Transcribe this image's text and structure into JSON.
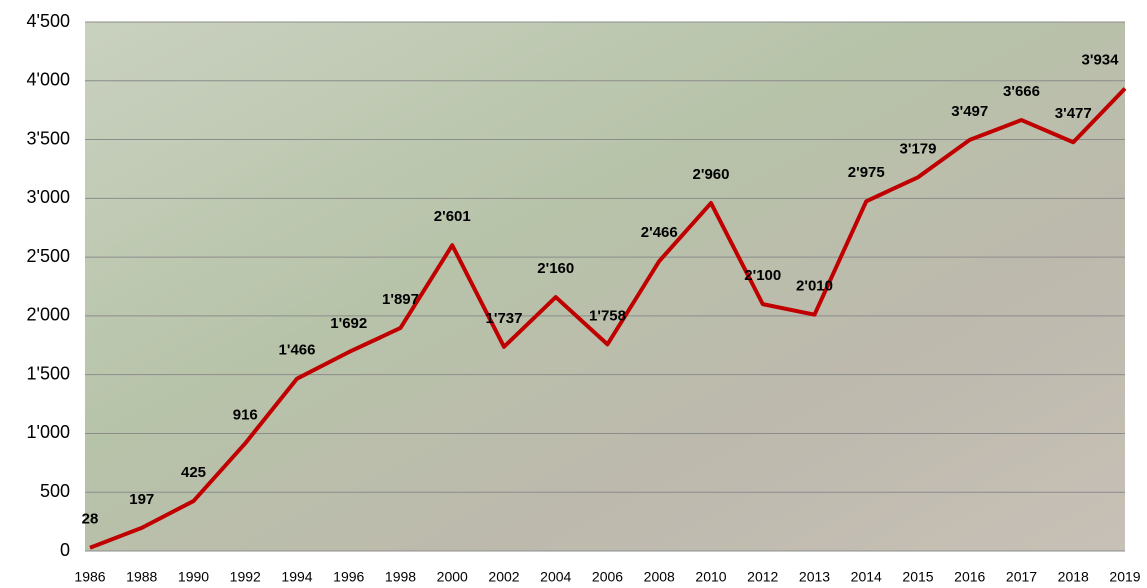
{
  "chart_data": {
    "type": "line",
    "categories": [
      "1986",
      "1988",
      "1990",
      "1992",
      "1994",
      "1996",
      "1998",
      "2000",
      "2002",
      "2004",
      "2006",
      "2008",
      "2010",
      "2012",
      "2013",
      "2014",
      "2015",
      "2016",
      "2017",
      "2018",
      "2019"
    ],
    "values": [
      28,
      197,
      425,
      916,
      1466,
      1692,
      1897,
      2601,
      1737,
      2160,
      1758,
      2466,
      2960,
      2100,
      2010,
      2975,
      3179,
      3497,
      3666,
      3477,
      3934
    ],
    "value_labels": [
      "28",
      "197",
      "425",
      "916",
      "1'466",
      "1'692",
      "1'897",
      "2'601",
      "1'737",
      "2'160",
      "1'758",
      "2'466",
      "2'960",
      "2'100",
      "2'010",
      "2'975",
      "3'179",
      "3'497",
      "3'666",
      "3'477",
      "3'934"
    ],
    "color": "#c00000",
    "ylim": [
      0,
      4500
    ],
    "yticks": [
      0,
      500,
      {
        "value": 1000,
        "label": "1'000"
      },
      {
        "value": 1500,
        "label": "1'500"
      },
      {
        "value": 2000,
        "label": "2'000"
      },
      {
        "value": 2500,
        "label": "2'500"
      },
      {
        "value": 3000,
        "label": "3'000"
      },
      {
        "value": 3500,
        "label": "3'500"
      },
      {
        "value": 4000,
        "label": "4'000"
      },
      {
        "value": 4500,
        "label": "4'500"
      }
    ],
    "grid": true
  }
}
